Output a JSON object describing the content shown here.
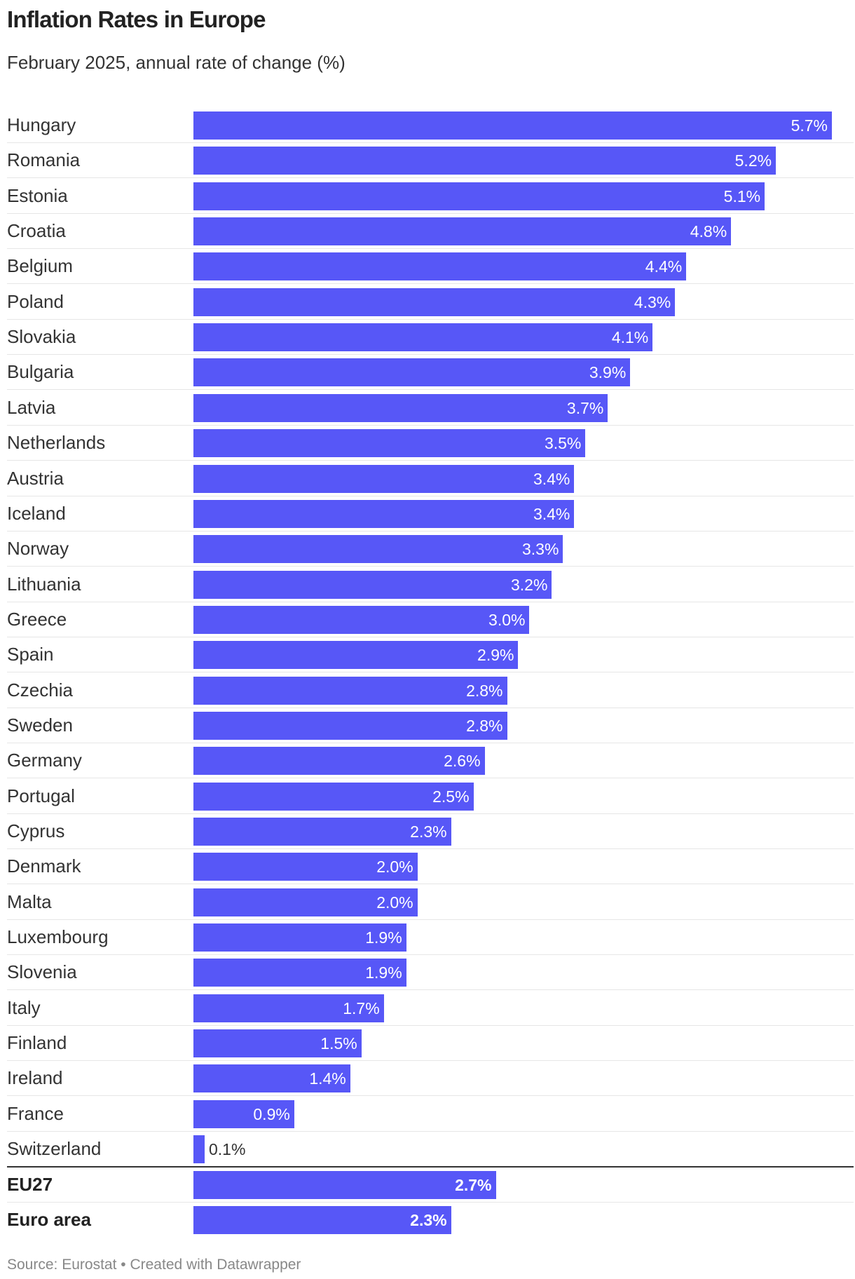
{
  "title": "Inflation Rates in Europe",
  "subtitle": "February 2025, annual rate of change (%)",
  "footer": {
    "source": "Source: Eurostat",
    "separator": "•",
    "credit": "Created with Datawrapper"
  },
  "colors": {
    "bar": "#5757f7",
    "label_inside": "#ffffff",
    "label_outside": "#333333"
  },
  "chart_data": {
    "type": "bar",
    "orientation": "horizontal",
    "title": "Inflation Rates in Europe",
    "subtitle": "February 2025, annual rate of change (%)",
    "xlim": [
      0,
      5.7
    ],
    "grid": false,
    "legend": "none",
    "categories": [
      "Hungary",
      "Romania",
      "Estonia",
      "Croatia",
      "Belgium",
      "Poland",
      "Slovakia",
      "Bulgaria",
      "Latvia",
      "Netherlands",
      "Austria",
      "Iceland",
      "Norway",
      "Lithuania",
      "Greece",
      "Spain",
      "Czechia",
      "Sweden",
      "Germany",
      "Portugal",
      "Cyprus",
      "Denmark",
      "Malta",
      "Luxembourg",
      "Slovenia",
      "Italy",
      "Finland",
      "Ireland",
      "France",
      "Switzerland",
      "EU27",
      "Euro area"
    ],
    "values": [
      5.7,
      5.2,
      5.1,
      4.8,
      4.4,
      4.3,
      4.1,
      3.9,
      3.7,
      3.5,
      3.4,
      3.4,
      3.3,
      3.2,
      3.0,
      2.9,
      2.8,
      2.8,
      2.6,
      2.5,
      2.3,
      2.0,
      2.0,
      1.9,
      1.9,
      1.7,
      1.5,
      1.4,
      0.9,
      0.1,
      2.7,
      2.3
    ],
    "value_labels": [
      "5.7%",
      "5.2%",
      "5.1%",
      "4.8%",
      "4.4%",
      "4.3%",
      "4.1%",
      "3.9%",
      "3.7%",
      "3.5%",
      "3.4%",
      "3.4%",
      "3.3%",
      "3.2%",
      "3.0%",
      "2.9%",
      "2.8%",
      "2.8%",
      "2.6%",
      "2.5%",
      "2.3%",
      "2.0%",
      "2.0%",
      "1.9%",
      "1.9%",
      "1.7%",
      "1.5%",
      "1.4%",
      "0.9%",
      "0.1%",
      "2.7%",
      "2.3%"
    ],
    "highlighted": [
      "EU27",
      "Euro area"
    ]
  }
}
